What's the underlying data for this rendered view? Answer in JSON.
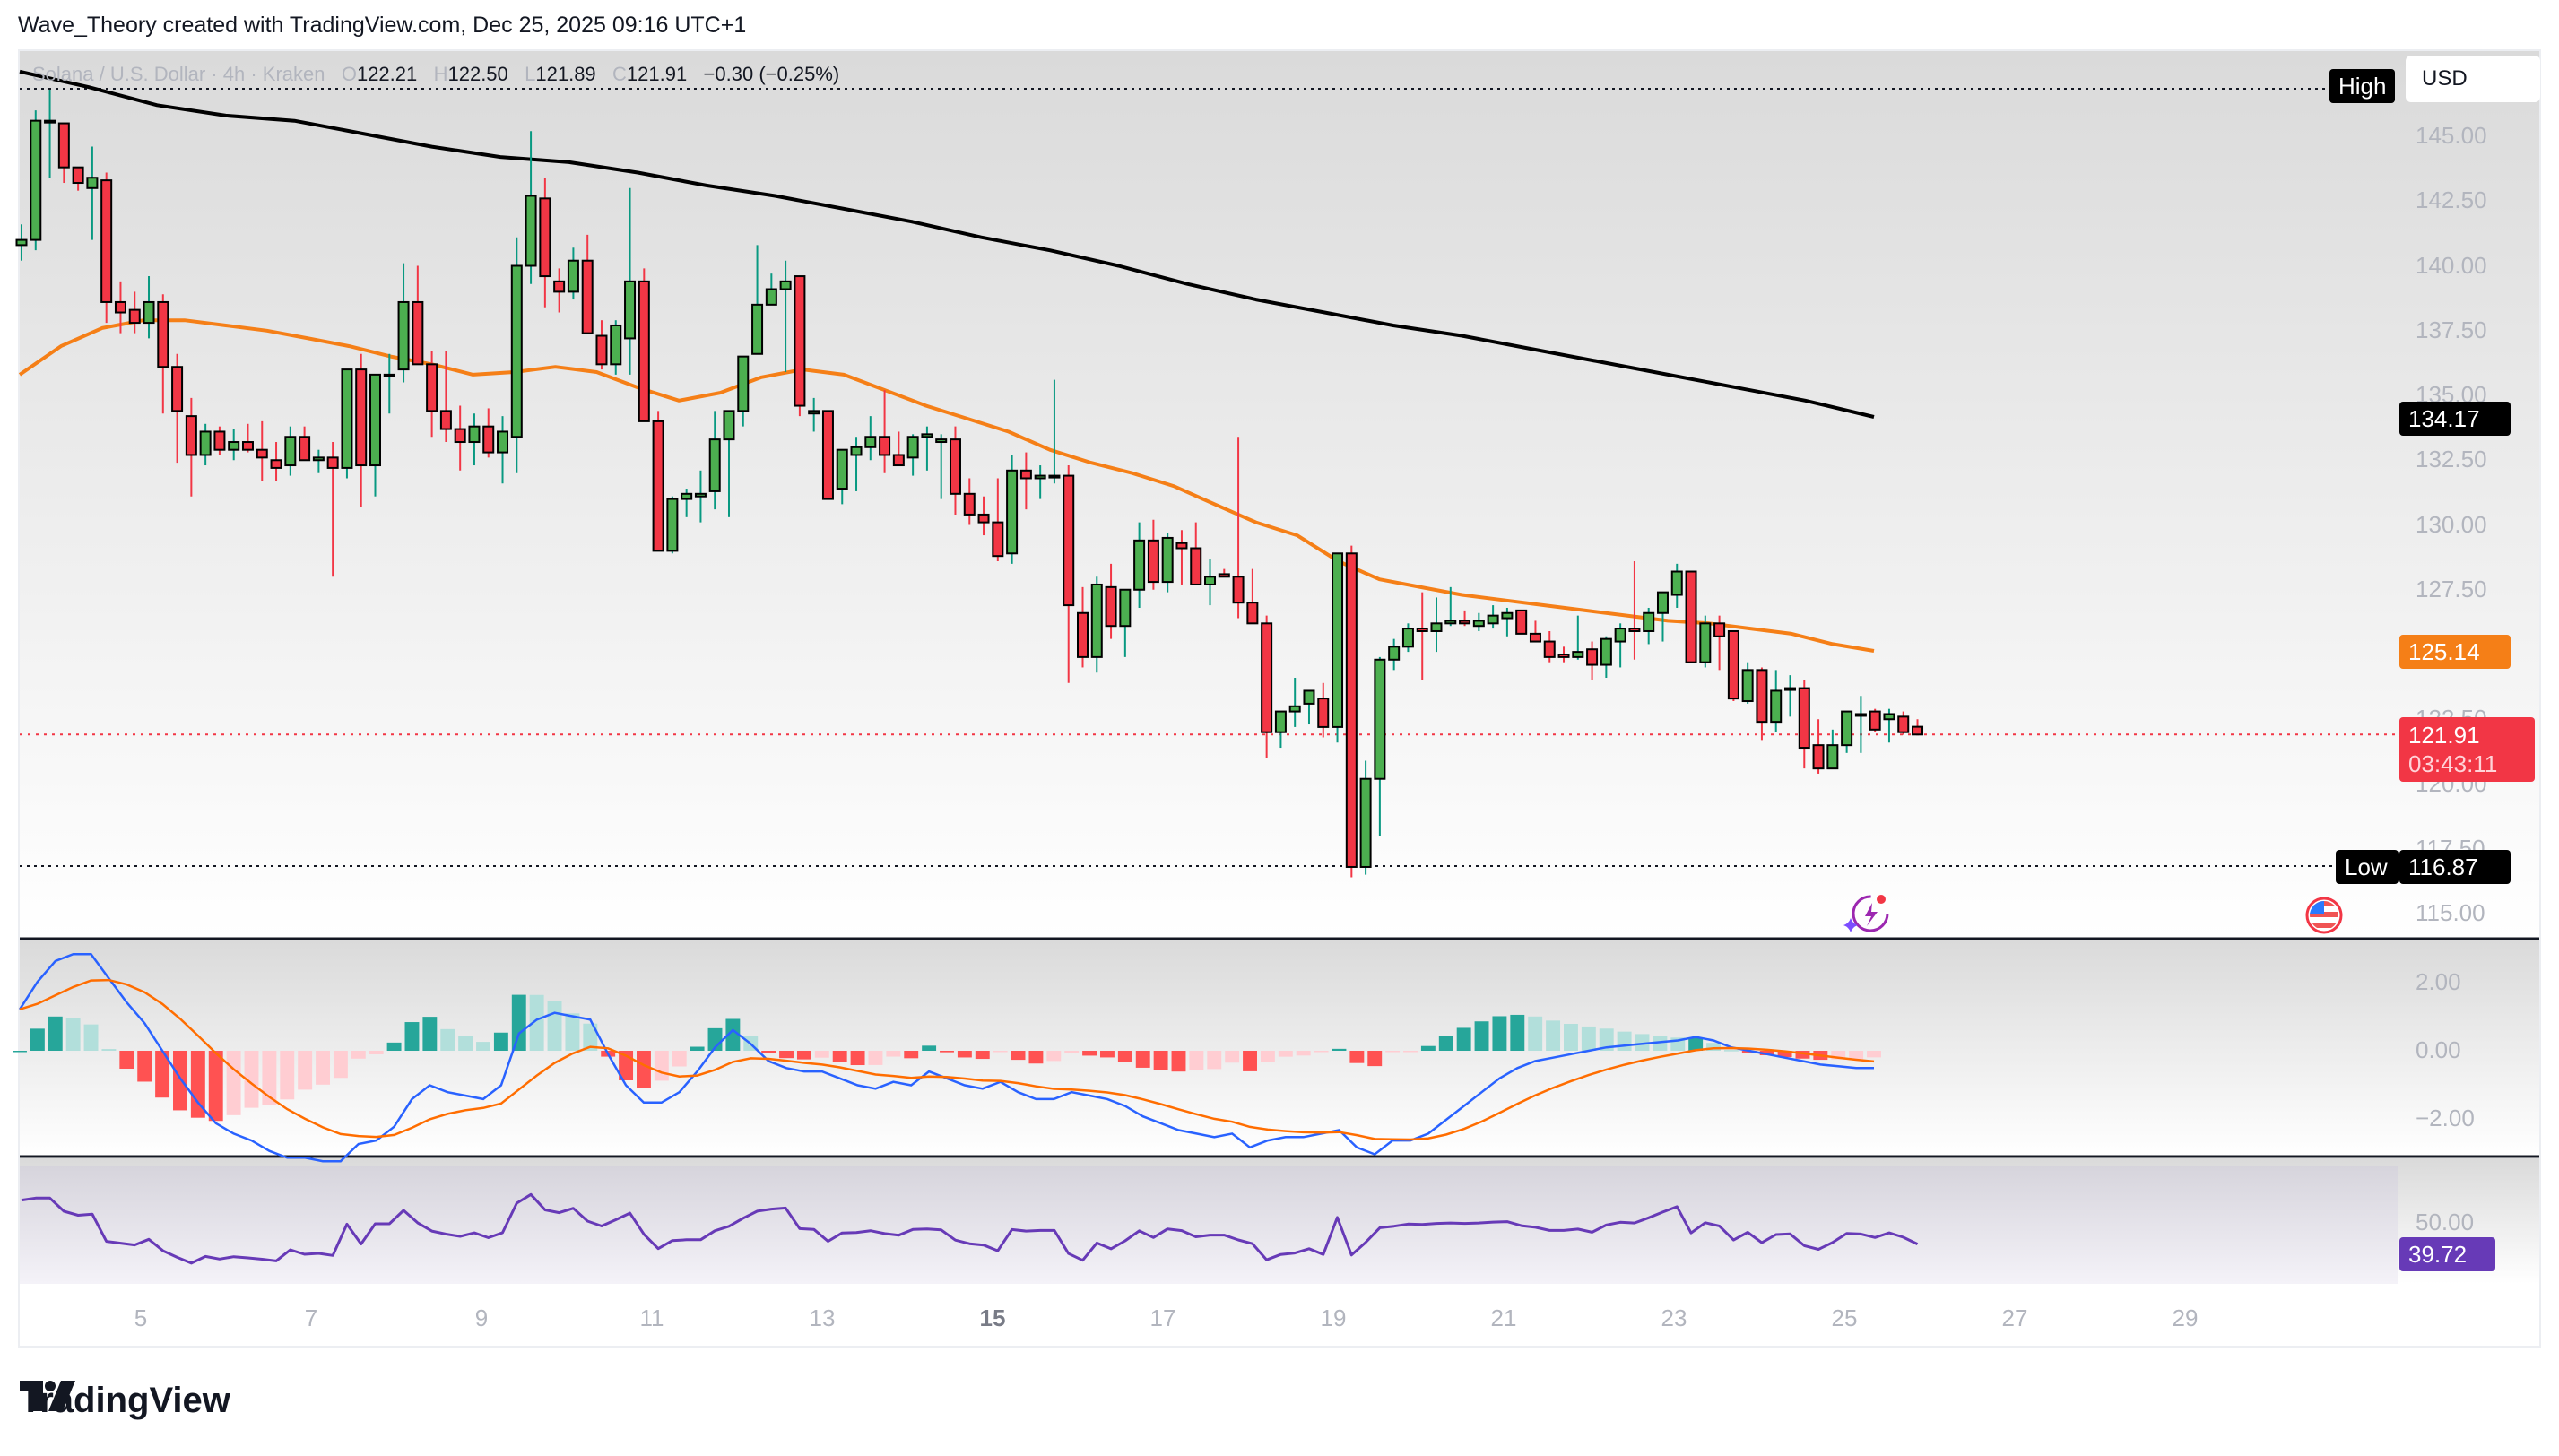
{
  "header": {
    "attribution": "Wave_Theory created with TradingView.com, Dec 25, 2025 09:16 UTC+1"
  },
  "legend": {
    "symbol": "Solana / U.S. Dollar · 4h · Kraken",
    "o_label": "O",
    "o": "122.21",
    "h_label": "H",
    "h": "122.50",
    "l_label": "L",
    "l": "121.89",
    "c_label": "C",
    "c": "121.91",
    "change": "−0.30 (−0.25%)"
  },
  "price_axis": {
    "currency": "USD",
    "ticks": [
      "145.00",
      "142.50",
      "140.00",
      "137.50",
      "135.00",
      "132.50",
      "130.00",
      "127.50",
      "125.00",
      "122.50",
      "120.00",
      "117.50",
      "115.00"
    ],
    "high_label": "High",
    "low_label": "Low",
    "low_value": "116.87",
    "ema200_value": "134.17",
    "ema50_value": "125.14",
    "last_price": "121.91",
    "countdown": "03:43:11"
  },
  "macd_axis": {
    "ticks": [
      "2.00",
      "0.00",
      "−2.00"
    ]
  },
  "rsi_axis": {
    "ticks": [
      "50.00"
    ],
    "value": "39.72"
  },
  "time_axis": {
    "ticks": [
      "5",
      "7",
      "9",
      "11",
      "13",
      "15",
      "17",
      "19",
      "21",
      "23",
      "25",
      "27",
      "29"
    ]
  },
  "brand": {
    "name": "TradingView"
  },
  "colors": {
    "up_body": "#4caf50",
    "up_wick": "#089981",
    "down_body": "#f23645",
    "down_wick": "#f23645",
    "ema50": "#f57f17",
    "ema200": "#000000",
    "macd": "#2962ff",
    "signal": "#ff6d00",
    "hist_up_strong": "#26a69a",
    "hist_up_weak": "#b2dfdb",
    "hist_down_strong": "#ff5252",
    "hist_down_weak": "#ffcdd2",
    "rsi": "#673ab7",
    "last_price_tag": "#f23645",
    "ema50_tag": "#f57f17"
  },
  "chart_data": {
    "type": "candlestick",
    "title": "Solana / U.S. Dollar · 4h · Kraken",
    "ylabel": "USD",
    "ylim": [
      114,
      147
    ],
    "x_ticks": [
      "5",
      "7",
      "9",
      "11",
      "13",
      "15",
      "17",
      "19",
      "21",
      "23",
      "25",
      "27",
      "29"
    ],
    "last_ohlc": {
      "open": 122.21,
      "high": 122.5,
      "low": 121.89,
      "close": 121.91,
      "change": -0.3,
      "change_pct": -0.25
    },
    "high_marker": "High",
    "low_marker": 116.87,
    "indicators": {
      "ema_50_last": 125.14,
      "ema_200_last": 134.17,
      "rsi_last": 39.72
    },
    "candles": [
      [
        140.8,
        141.6,
        140.2,
        141.0
      ],
      [
        141.0,
        146.0,
        140.6,
        145.6
      ],
      [
        145.6,
        146.8,
        143.4,
        145.6
      ],
      [
        145.5,
        144.9,
        143.2,
        143.8
      ],
      [
        143.8,
        143.3,
        142.9,
        143.2
      ],
      [
        143.0,
        144.6,
        141.0,
        143.4
      ],
      [
        143.3,
        143.6,
        137.8,
        138.6
      ],
      [
        138.6,
        139.4,
        137.4,
        138.2
      ],
      [
        138.3,
        139.0,
        137.4,
        137.8
      ],
      [
        137.8,
        139.6,
        137.2,
        138.6
      ],
      [
        138.6,
        138.9,
        134.3,
        136.1
      ],
      [
        136.1,
        136.6,
        132.4,
        134.4
      ],
      [
        134.2,
        134.9,
        131.1,
        132.7
      ],
      [
        132.7,
        133.9,
        132.3,
        133.6
      ],
      [
        133.6,
        133.8,
        132.7,
        132.9
      ],
      [
        132.9,
        133.7,
        132.5,
        133.2
      ],
      [
        133.2,
        133.9,
        132.8,
        132.9
      ],
      [
        132.9,
        134.0,
        131.7,
        132.6
      ],
      [
        132.5,
        133.2,
        131.7,
        132.2
      ],
      [
        132.3,
        133.8,
        131.9,
        133.4
      ],
      [
        133.4,
        133.8,
        132.8,
        132.5
      ],
      [
        132.5,
        132.9,
        132.0,
        132.6
      ],
      [
        132.6,
        133.2,
        128.0,
        132.2
      ],
      [
        132.2,
        136.0,
        131.8,
        136.0
      ],
      [
        136.0,
        136.6,
        130.7,
        132.3
      ],
      [
        132.3,
        134.2,
        131.1,
        135.8
      ],
      [
        135.8,
        136.6,
        134.3,
        135.8
      ],
      [
        136.0,
        140.1,
        135.5,
        138.6
      ],
      [
        138.6,
        140.0,
        136.6,
        136.2
      ],
      [
        136.2,
        136.7,
        133.4,
        134.4
      ],
      [
        134.4,
        136.7,
        133.2,
        133.7
      ],
      [
        133.7,
        134.6,
        132.1,
        133.2
      ],
      [
        133.2,
        134.3,
        132.3,
        133.8
      ],
      [
        133.8,
        134.5,
        132.6,
        132.8
      ],
      [
        132.8,
        134.2,
        131.6,
        133.6
      ],
      [
        133.4,
        141.1,
        132.0,
        140.0
      ],
      [
        140.0,
        145.2,
        139.3,
        142.7
      ],
      [
        142.6,
        143.4,
        138.4,
        139.6
      ],
      [
        139.4,
        139.9,
        138.2,
        139.0
      ],
      [
        139.0,
        140.7,
        138.7,
        140.2
      ],
      [
        140.2,
        141.2,
        137.5,
        137.4
      ],
      [
        137.3,
        137.9,
        136.0,
        136.2
      ],
      [
        136.2,
        137.9,
        135.8,
        137.7
      ],
      [
        137.2,
        143.0,
        135.8,
        139.4
      ],
      [
        139.4,
        139.9,
        135.9,
        134.0
      ],
      [
        134.0,
        134.4,
        129.7,
        129.0
      ],
      [
        129.0,
        131.1,
        128.9,
        131.0
      ],
      [
        131.0,
        131.4,
        130.3,
        131.2
      ],
      [
        131.1,
        132.1,
        130.1,
        131.2
      ],
      [
        131.3,
        134.4,
        130.6,
        133.3
      ],
      [
        133.3,
        134.1,
        130.3,
        134.4
      ],
      [
        134.4,
        136.3,
        133.8,
        136.5
      ],
      [
        136.6,
        140.8,
        136.6,
        138.5
      ],
      [
        138.5,
        139.7,
        138.6,
        139.1
      ],
      [
        139.1,
        140.2,
        135.9,
        139.4
      ],
      [
        139.6,
        139.4,
        134.2,
        134.6
      ],
      [
        134.3,
        134.9,
        133.6,
        134.4
      ],
      [
        134.4,
        134.0,
        131.0,
        131.0
      ],
      [
        131.4,
        132.9,
        130.8,
        132.9
      ],
      [
        132.7,
        133.4,
        131.3,
        133.0
      ],
      [
        133.0,
        134.2,
        132.5,
        133.4
      ],
      [
        133.4,
        135.2,
        132.0,
        132.7
      ],
      [
        132.7,
        133.6,
        132.3,
        132.3
      ],
      [
        132.6,
        133.5,
        131.9,
        133.4
      ],
      [
        133.4,
        133.8,
        132.1,
        133.5
      ],
      [
        133.2,
        133.5,
        131.0,
        133.3
      ],
      [
        133.3,
        133.8,
        130.4,
        131.2
      ],
      [
        131.2,
        131.8,
        130.0,
        130.4
      ],
      [
        130.4,
        131.1,
        129.6,
        130.1
      ],
      [
        130.1,
        131.8,
        128.6,
        128.8
      ],
      [
        128.9,
        132.7,
        128.5,
        132.1
      ],
      [
        132.1,
        132.8,
        130.6,
        131.8
      ],
      [
        131.8,
        132.3,
        131.0,
        131.9
      ],
      [
        131.9,
        135.6,
        131.6,
        131.9
      ],
      [
        131.9,
        132.3,
        123.9,
        126.9
      ],
      [
        126.6,
        127.6,
        124.5,
        124.9
      ],
      [
        124.9,
        128.0,
        124.3,
        127.7
      ],
      [
        127.6,
        128.5,
        125.6,
        126.1
      ],
      [
        126.1,
        127.4,
        124.9,
        127.5
      ],
      [
        127.5,
        130.1,
        126.8,
        129.4
      ],
      [
        129.4,
        130.2,
        127.5,
        127.8
      ],
      [
        127.8,
        129.7,
        127.4,
        129.5
      ],
      [
        129.3,
        129.8,
        127.7,
        129.1
      ],
      [
        129.1,
        130.1,
        128.2,
        127.7
      ],
      [
        127.7,
        128.7,
        126.9,
        128.0
      ],
      [
        128.1,
        128.3,
        128.0,
        128.0
      ],
      [
        128.0,
        133.4,
        126.4,
        127.0
      ],
      [
        127.0,
        128.3,
        126.2,
        126.2
      ],
      [
        126.2,
        126.5,
        121.0,
        122.0
      ],
      [
        122.0,
        122.8,
        121.4,
        122.8
      ],
      [
        122.8,
        124.1,
        122.2,
        123.0
      ],
      [
        123.1,
        123.5,
        122.3,
        123.6
      ],
      [
        123.3,
        123.9,
        121.8,
        122.2
      ],
      [
        122.2,
        128.8,
        121.6,
        128.9
      ],
      [
        128.9,
        129.2,
        116.4,
        116.8
      ],
      [
        116.8,
        120.9,
        116.5,
        120.2
      ],
      [
        120.2,
        124.9,
        118.0,
        124.8
      ],
      [
        124.8,
        125.6,
        124.4,
        125.3
      ],
      [
        125.3,
        126.2,
        125.1,
        126.0
      ],
      [
        126.0,
        127.4,
        124.0,
        125.9
      ],
      [
        125.9,
        127.2,
        125.1,
        126.2
      ],
      [
        126.2,
        127.6,
        126.1,
        126.3
      ],
      [
        126.3,
        126.7,
        126.1,
        126.2
      ],
      [
        126.1,
        126.6,
        125.9,
        126.3
      ],
      [
        126.2,
        126.9,
        126.0,
        126.5
      ],
      [
        126.4,
        126.8,
        125.7,
        126.6
      ],
      [
        126.7,
        126.7,
        125.8,
        125.8
      ],
      [
        125.8,
        126.3,
        125.6,
        125.5
      ],
      [
        125.5,
        125.9,
        124.7,
        124.9
      ],
      [
        125.0,
        125.3,
        124.7,
        124.9
      ],
      [
        124.9,
        126.5,
        124.8,
        125.1
      ],
      [
        125.2,
        125.5,
        124.0,
        124.6
      ],
      [
        124.6,
        125.7,
        124.1,
        125.6
      ],
      [
        125.5,
        126.2,
        124.5,
        126.0
      ],
      [
        126.0,
        128.6,
        124.8,
        125.9
      ],
      [
        125.9,
        126.8,
        125.4,
        126.6
      ],
      [
        126.6,
        127.4,
        125.5,
        127.4
      ],
      [
        127.3,
        128.5,
        126.8,
        128.2
      ],
      [
        128.2,
        128.0,
        124.7,
        124.7
      ],
      [
        124.7,
        126.5,
        124.5,
        126.2
      ],
      [
        126.2,
        126.5,
        124.4,
        125.7
      ],
      [
        125.9,
        125.8,
        123.2,
        123.3
      ],
      [
        123.2,
        124.7,
        123.1,
        124.4
      ],
      [
        124.4,
        124.5,
        121.7,
        122.4
      ],
      [
        122.4,
        124.4,
        122.0,
        123.6
      ],
      [
        123.7,
        124.2,
        122.6,
        123.7
      ],
      [
        123.7,
        124.0,
        120.6,
        121.4
      ],
      [
        121.5,
        122.5,
        120.4,
        120.6
      ],
      [
        120.6,
        122.1,
        120.9,
        121.5
      ],
      [
        121.5,
        122.3,
        121.2,
        122.8
      ],
      [
        122.7,
        123.4,
        121.2,
        122.7
      ],
      [
        122.8,
        122.9,
        122.0,
        122.1
      ],
      [
        122.5,
        122.9,
        121.6,
        122.7
      ],
      [
        122.6,
        122.8,
        121.9,
        122.0
      ],
      [
        122.21,
        122.5,
        121.89,
        121.91
      ]
    ],
    "ema50": [
      135.8,
      136.9,
      137.6,
      137.9,
      137.9,
      137.7,
      137.5,
      137.2,
      136.9,
      136.5,
      136.2,
      135.8,
      135.9,
      136.1,
      135.9,
      135.3,
      134.8,
      135.1,
      135.7,
      136.0,
      135.8,
      135.2,
      134.6,
      134.1,
      133.6,
      132.9,
      132.4,
      132.0,
      131.5,
      130.8,
      130.1,
      129.6,
      128.6,
      127.9,
      127.6,
      127.3,
      127.1,
      126.9,
      126.7,
      126.5,
      126.3,
      126.2,
      126.0,
      125.8,
      125.4,
      125.14
    ],
    "ema200": [
      147.5,
      146.9,
      146.2,
      145.8,
      145.6,
      145.1,
      144.6,
      144.2,
      144.0,
      143.6,
      143.1,
      142.7,
      142.2,
      141.7,
      141.1,
      140.6,
      140.0,
      139.3,
      138.7,
      138.2,
      137.7,
      137.3,
      136.8,
      136.3,
      135.8,
      135.3,
      134.8,
      134.17
    ],
    "macd": [
      1.2,
      2.0,
      2.6,
      2.8,
      2.8,
      2.1,
      1.4,
      0.8,
      0.0,
      -0.8,
      -1.5,
      -2.1,
      -2.4,
      -2.6,
      -2.9,
      -3.1,
      -3.1,
      -3.2,
      -3.2,
      -2.7,
      -2.6,
      -2.2,
      -1.4,
      -1.0,
      -1.2,
      -1.3,
      -1.4,
      -1.0,
      0.5,
      0.9,
      1.1,
      1.0,
      0.9,
      -0.1,
      -1.0,
      -1.5,
      -1.5,
      -1.2,
      -0.6,
      0.1,
      0.6,
      0.2,
      -0.3,
      -0.5,
      -0.6,
      -0.6,
      -0.8,
      -1.0,
      -1.1,
      -0.9,
      -1.0,
      -0.6,
      -0.8,
      -1.0,
      -1.1,
      -0.9,
      -1.2,
      -1.4,
      -1.4,
      -1.2,
      -1.3,
      -1.4,
      -1.6,
      -1.9,
      -2.1,
      -2.3,
      -2.4,
      -2.5,
      -2.4,
      -2.8,
      -2.6,
      -2.5,
      -2.5,
      -2.4,
      -2.3,
      -2.8,
      -3.0,
      -2.6,
      -2.6,
      -2.4,
      -2.0,
      -1.6,
      -1.2,
      -0.8,
      -0.5,
      -0.3,
      -0.2,
      -0.1,
      0.0,
      0.1,
      0.15,
      0.2,
      0.25,
      0.3,
      0.4,
      0.3,
      0.1,
      0.0,
      -0.1,
      -0.2,
      -0.3,
      -0.4,
      -0.45,
      -0.5,
      -0.5
    ],
    "rsi_note": "RSI(14) series approximated in template",
    "rsi_last": 39.72
  }
}
